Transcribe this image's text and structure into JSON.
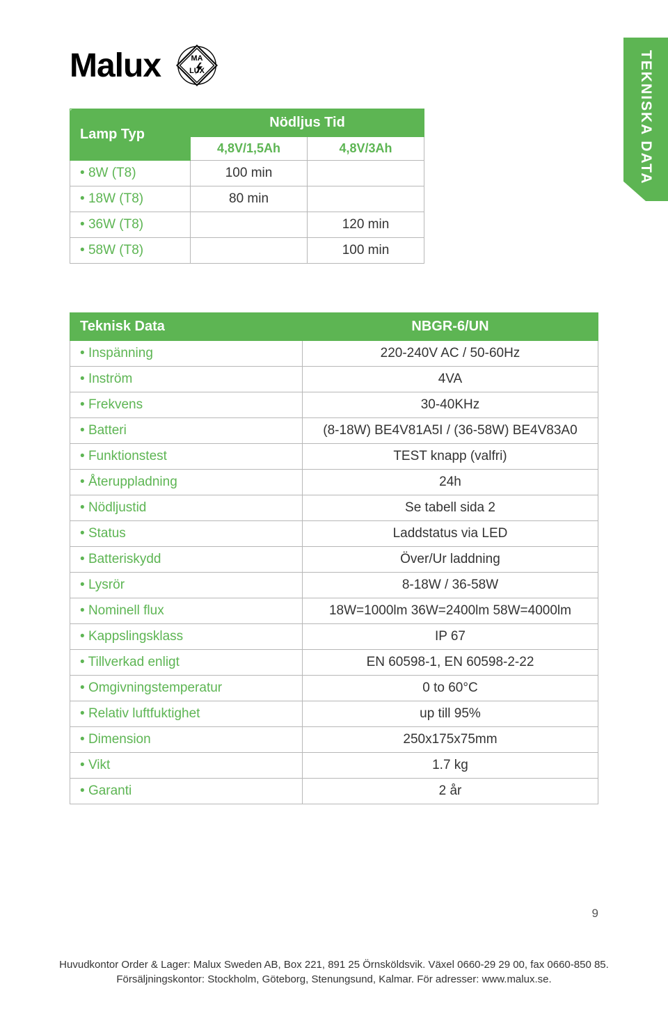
{
  "brand": "Malux",
  "side_tab": "TEKNISKA DATA",
  "table1": {
    "head_left": "Lamp Typ",
    "head_right": "Nödljus Tid",
    "sub_left": "4,8V/1,5Ah",
    "sub_right": "4,8V/3Ah",
    "rows": [
      {
        "label": "8W (T8)",
        "c1": "100 min",
        "c2": ""
      },
      {
        "label": "18W (T8)",
        "c1": "80 min",
        "c2": ""
      },
      {
        "label": "36W (T8)",
        "c1": "",
        "c2": "120 min"
      },
      {
        "label": "58W (T8)",
        "c1": "",
        "c2": "100 min"
      }
    ]
  },
  "table2": {
    "head_left": "Teknisk Data",
    "head_right": "NBGR-6/UN",
    "rows": [
      {
        "label": "Inspänning",
        "val": "220-240V AC / 50-60Hz"
      },
      {
        "label": "Inström",
        "val": "4VA"
      },
      {
        "label": "Frekvens",
        "val": "30-40KHz"
      },
      {
        "label": "Batteri",
        "val": "(8-18W) BE4V81A5I / (36-58W) BE4V83A0"
      },
      {
        "label": "Funktionstest",
        "val": "TEST knapp (valfri)"
      },
      {
        "label": "Återuppladning",
        "val": "24h"
      },
      {
        "label": "Nödljustid",
        "val": "Se tabell sida 2"
      },
      {
        "label": "Status",
        "val": "Laddstatus via LED"
      },
      {
        "label": "Batteriskydd",
        "val": "Över/Ur laddning"
      },
      {
        "label": "Lysrör",
        "val": "8-18W / 36-58W"
      },
      {
        "label": "Nominell flux",
        "val": "18W=1000lm 36W=2400lm 58W=4000lm"
      },
      {
        "label": "Kappslingsklass",
        "val": "IP 67"
      },
      {
        "label": "Tillverkad enligt",
        "val": "EN 60598-1, EN 60598-2-22"
      },
      {
        "label": "Omgivningstemperatur",
        "val": "0 to 60°C"
      },
      {
        "label": "Relativ luftfuktighet",
        "val": "up till 95%"
      },
      {
        "label": "Dimension",
        "val": "250x175x75mm"
      },
      {
        "label": "Vikt",
        "val": "1.7 kg"
      },
      {
        "label": "Garanti",
        "val": "2 år"
      }
    ]
  },
  "page_number": "9",
  "footer_line1": "Huvudkontor Order & Lager: Malux Sweden AB, Box 221, 891 25 Örnsköldsvik. Växel 0660-29 29 00, fax 0660-850 85.",
  "footer_line2": "Försäljningskontor: Stockholm, Göteborg, Stenungsund, Kalmar. För adresser: www.malux.se.",
  "colors": {
    "green": "#5db553",
    "border": "#b7b7b7",
    "text": "#333333"
  }
}
